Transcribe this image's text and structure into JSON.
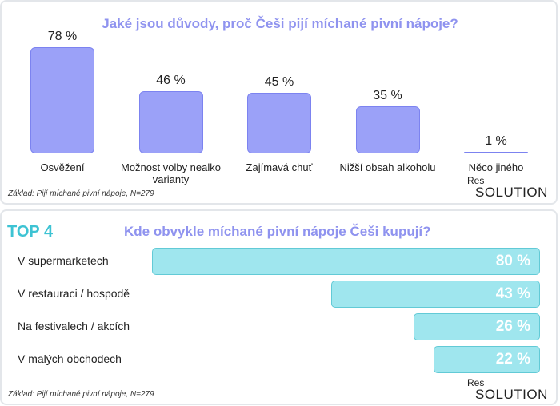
{
  "chart_data": [
    {
      "type": "bar",
      "title": "Jaké jsou důvody, proč Češi pijí míchané pivní nápoje?",
      "categories": [
        "Osvěžení",
        "Možnost volby nealko varianty",
        "Zajímavá chuť",
        "Nižší obsah alkoholu",
        "Něco jiného"
      ],
      "values": [
        78,
        46,
        45,
        35,
        1
      ],
      "value_labels": [
        "78 %",
        "46 %",
        "45 %",
        "35 %",
        "1 %"
      ],
      "color": "#9ba1f8",
      "note": "Základ: Pijí míchané pivní nápoje, N=279",
      "logo": [
        "Res",
        "SOLUTION"
      ]
    },
    {
      "type": "hbar",
      "badge": "TOP 4",
      "title": "Kde obvykle míchané pivní nápoje Češi kupují?",
      "categories": [
        "V supermarketech",
        "V restauraci / hospodě",
        "Na festivalech / akcích",
        "V malých obchodech"
      ],
      "values": [
        80,
        43,
        26,
        22
      ],
      "value_labels": [
        "80 %",
        "43 %",
        "26 %",
        "22 %"
      ],
      "color": "#9fe6ee",
      "note": "Základ: Pijí míchané pivní nápoje, N=279",
      "logo": [
        "Res",
        "SOLUTION"
      ]
    }
  ]
}
